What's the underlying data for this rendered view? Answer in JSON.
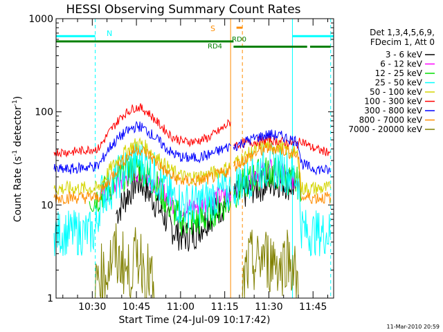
{
  "chart_data": {
    "type": "line",
    "title": "HESSI Observing Summary Count Rates",
    "xlabel": "Start Time (24-Jul-09 10:17:42)",
    "ylabel": "Count Rate (s",
    "ylabel_sup": "-1",
    "ylabel_mid": " detector",
    "ylabel_sup2": "-1",
    "ylabel_end": ")",
    "yscale": "log",
    "ylim": [
      1,
      1000
    ],
    "xlim": [
      "10:17:42",
      "11:52:00"
    ],
    "x_ticks": [
      "10:30",
      "10:45",
      "11:00",
      "11:15",
      "11:30",
      "11:45"
    ],
    "y_ticks": [
      "1",
      "10",
      "100",
      "1000"
    ],
    "legend_header": [
      "Det 1,3,4,5,6,9,",
      "FDecim 1, Att 0"
    ],
    "legend_position": "right",
    "footer": "11-Mar-2010 20:59",
    "annotations": {
      "N": "N",
      "S": "S",
      "RD0": "RD0",
      "RD4": "RD4"
    },
    "series": [
      {
        "name": "3 - 6 keV",
        "color": "#000000",
        "segments": [
          {
            "x": [
              "10:38",
              "10:40",
              "10:42",
              "10:44",
              "10:45",
              "10:47",
              "10:49",
              "10:52",
              "10:55",
              "10:58",
              "11:01",
              "11:05",
              "11:09",
              "11:13",
              "11:16",
              "11:17"
            ],
            "y": [
              8,
              10,
              13,
              16,
              18,
              17,
              14,
              10,
              7,
              5.2,
              4.5,
              5,
              7,
              9,
              11,
              12
            ]
          },
          {
            "x": [
              "11:18",
              "11:21",
              "11:24",
              "11:27",
              "11:30",
              "11:33",
              "11:36",
              "11:38",
              "11:39"
            ],
            "y": [
              12,
              13,
              15,
              16,
              17,
              18,
              17,
              16,
              16
            ]
          }
        ]
      },
      {
        "name": "6 - 12 keV",
        "color": "#ff00ff",
        "segments": [
          {
            "x": [
              "10:33",
              "10:36",
              "10:40",
              "10:44",
              "10:46",
              "10:49",
              "10:53",
              "10:58",
              "11:02",
              "11:07",
              "11:12",
              "11:17"
            ],
            "y": [
              13,
              14,
              18,
              22,
              23,
              20,
              15,
              10,
              9,
              10,
              12,
              13
            ]
          },
          {
            "x": [
              "11:18",
              "11:22",
              "11:26",
              "11:30",
              "11:34",
              "11:38",
              "11:40"
            ],
            "y": [
              15,
              18,
              22,
              24,
              22,
              19,
              18
            ]
          }
        ]
      },
      {
        "name": "12 - 25 keV",
        "color": "#00dd00",
        "segments": [
          {
            "x": [
              "10:29",
              "10:29",
              "10:32",
              "10:35",
              "10:39",
              "10:43",
              "10:45",
              "10:48",
              "10:52",
              "10:56",
              "11:00",
              "11:04",
              "11:08",
              "11:12",
              "11:17"
            ],
            "y": [
              1,
              11,
              12,
              15,
              19,
              24,
              26,
              23,
              16,
              10,
              7,
              6.5,
              7,
              9,
              11
            ]
          },
          {
            "x": [
              "11:18",
              "11:22",
              "11:26",
              "11:30",
              "11:34",
              "11:38",
              "11:40",
              "11:41",
              "11:41"
            ],
            "y": [
              13,
              17,
              21,
              23,
              21,
              18,
              17,
              15,
              1
            ]
          }
        ]
      },
      {
        "name": "25 - 50 keV",
        "color": "#00ffff",
        "segments": [
          {
            "x": [
              "10:17",
              "10:20",
              "10:24",
              "10:28",
              "10:31",
              "10:33",
              "10:36",
              "10:40",
              "10:44",
              "10:46",
              "10:49",
              "10:53",
              "10:57",
              "11:01",
              "11:05",
              "11:09",
              "11:13",
              "11:17"
            ],
            "y": [
              5,
              5,
              5,
              5,
              5,
              13,
              15,
              22,
              28,
              30,
              26,
              18,
              12,
              10,
              10,
              11,
              13,
              14
            ]
          },
          {
            "x": [
              "11:18",
              "11:22",
              "11:26",
              "11:30",
              "11:34",
              "11:38",
              "11:40",
              "11:41",
              "11:43",
              "11:47",
              "11:51"
            ],
            "y": [
              16,
              19,
              24,
              27,
              25,
              21,
              19,
              6,
              5,
              5,
              5
            ]
          }
        ]
      },
      {
        "name": "50 - 100 keV",
        "color": "#d4d400",
        "segments": [
          {
            "x": [
              "10:17",
              "10:22",
              "10:26",
              "10:30",
              "10:32",
              "10:36",
              "10:40",
              "10:44",
              "10:46",
              "10:49",
              "10:53",
              "10:57",
              "11:01",
              "11:05",
              "11:09",
              "11:13",
              "11:17"
            ],
            "y": [
              15,
              15,
              15,
              15,
              15,
              24,
              34,
              44,
              46,
              40,
              30,
              23,
              20,
              20,
              21,
              23,
              26
            ]
          },
          {
            "x": [
              "11:18",
              "11:22",
              "11:26",
              "11:30",
              "11:34",
              "11:38",
              "11:40",
              "11:41",
              "11:44",
              "11:48",
              "11:51"
            ],
            "y": [
              28,
              33,
              40,
              44,
              42,
              37,
              34,
              15,
              15,
              15,
              15
            ]
          }
        ]
      },
      {
        "name": "100 - 300 keV",
        "color": "#ff0000",
        "segments": [
          {
            "x": [
              "10:17",
              "10:22",
              "10:26",
              "10:30",
              "10:32",
              "10:36",
              "10:40",
              "10:44",
              "10:46",
              "10:49",
              "10:53",
              "10:57",
              "11:01",
              "11:05",
              "11:09",
              "11:13",
              "11:17"
            ],
            "y": [
              37,
              37,
              38,
              40,
              40,
              62,
              90,
              110,
              112,
              98,
              72,
              54,
              48,
              48,
              52,
              62,
              78
            ]
          },
          {
            "x": [
              "11:18",
              "11:22",
              "11:26",
              "11:30",
              "11:34",
              "11:38",
              "11:40",
              "11:41",
              "11:44",
              "11:48",
              "11:51"
            ],
            "y": [
              44,
              46,
              48,
              50,
              48,
              46,
              45,
              50,
              42,
              38,
              37
            ]
          }
        ]
      },
      {
        "name": "300 - 800 keV",
        "color": "#0000ff",
        "segments": [
          {
            "x": [
              "10:17",
              "10:22",
              "10:26",
              "10:30",
              "10:32",
              "10:36",
              "10:40",
              "10:44",
              "10:46",
              "10:49",
              "10:53",
              "10:57",
              "11:01",
              "11:05",
              "11:09",
              "11:13",
              "11:17"
            ],
            "y": [
              24,
              24,
              25,
              26,
              26,
              42,
              56,
              68,
              70,
              62,
              47,
              36,
              32,
              32,
              34,
              38,
              43
            ]
          },
          {
            "x": [
              "11:18",
              "11:22",
              "11:26",
              "11:30",
              "11:34",
              "11:38",
              "11:40",
              "11:41",
              "11:44",
              "11:48",
              "11:51"
            ],
            "y": [
              42,
              48,
              53,
              57,
              55,
              50,
              48,
              28,
              25,
              24,
              23
            ]
          }
        ]
      },
      {
        "name": "800 - 7000 keV",
        "color": "#ff8c00",
        "segments": [
          {
            "x": [
              "10:17",
              "10:22",
              "10:26",
              "10:30",
              "10:32",
              "10:36",
              "10:40",
              "10:44",
              "10:46",
              "10:49",
              "10:53",
              "10:57",
              "11:01",
              "11:05",
              "11:09",
              "11:13",
              "11:17"
            ],
            "y": [
              12,
              12,
              12,
              12,
              12,
              19,
              29,
              38,
              40,
              35,
              26,
              20,
              18,
              18,
              19,
              21,
              24
            ]
          },
          {
            "x": [
              "11:18",
              "11:22",
              "11:26",
              "11:30",
              "11:34",
              "11:38",
              "11:40",
              "11:41",
              "11:44",
              "11:48",
              "11:51"
            ],
            "y": [
              26,
              31,
              37,
              41,
              40,
              36,
              33,
              12,
              12,
              12,
              12
            ]
          }
        ]
      },
      {
        "name": "7000 - 20000 keV",
        "color": "#808000",
        "segments": [
          {
            "x": [
              "10:31",
              "10:32",
              "10:34",
              "10:36",
              "10:38",
              "10:39",
              "10:40",
              "10:42",
              "10:44",
              "10:46",
              "10:48",
              "10:50",
              "10:51"
            ],
            "y": [
              1,
              2,
              1.6,
              2.5,
              3,
              2.2,
              2.8,
              1.7,
              2.4,
              3,
              2,
              1.6,
              1
            ]
          },
          {
            "x": [
              "11:21",
              "11:22",
              "11:24",
              "11:26",
              "11:28",
              "11:30",
              "11:32",
              "11:34",
              "11:36",
              "11:38",
              "11:39",
              "11:40"
            ],
            "y": [
              1,
              1.8,
              2.5,
              2.2,
              3,
              2.4,
              2.8,
              2,
              3,
              2.3,
              1.7,
              1
            ]
          }
        ]
      }
    ],
    "status_bars": [
      {
        "name": "N",
        "color": "#00ffff",
        "y": 650,
        "segments": [
          [
            "10:17:42",
            "10:31"
          ],
          [
            "11:38",
            "11:52"
          ]
        ]
      },
      {
        "name": "S",
        "color": "#ff8c00",
        "y": 800,
        "segments": [
          [
            "11:19",
            "11:21"
          ]
        ]
      },
      {
        "name": "RD4",
        "color": "#008000",
        "y": 570,
        "segments": [
          [
            "10:17:42",
            "11:18"
          ]
        ]
      },
      {
        "name": "RD0",
        "color": "#008000",
        "y": 500,
        "segments": [
          [
            "11:18",
            "11:43"
          ],
          [
            "11:44",
            "11:51"
          ]
        ]
      }
    ],
    "vertical_lines": [
      {
        "x": "10:31",
        "color": "#00ffff",
        "style": "dashed"
      },
      {
        "x": "11:38",
        "color": "#00ffff",
        "style": "solid"
      },
      {
        "x": "11:51",
        "color": "#00ffff",
        "style": "dashed"
      },
      {
        "x": "10:17:42",
        "color": "#00ffff",
        "style": "solid"
      },
      {
        "x": "11:17",
        "color": "#ff8c00",
        "style": "solid"
      },
      {
        "x": "11:21",
        "color": "#ff8c00",
        "style": "dashed"
      }
    ]
  }
}
